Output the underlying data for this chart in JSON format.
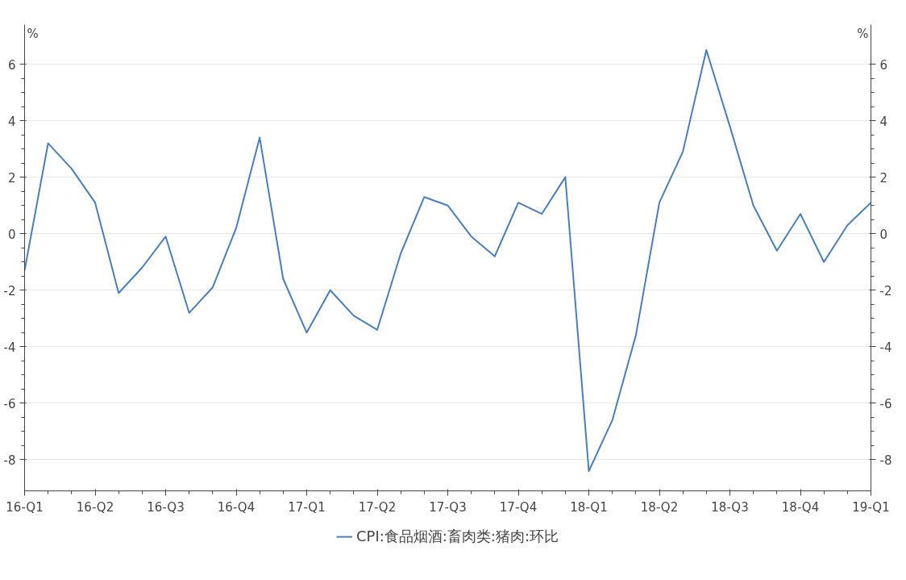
{
  "chart_data": {
    "type": "line",
    "ylabel": "%",
    "y2label": "%",
    "categories": [
      "16-Q1",
      null,
      null,
      "16-Q2",
      null,
      null,
      "16-Q3",
      null,
      null,
      "16-Q4",
      null,
      null,
      "17-Q1",
      null,
      null,
      "17-Q2",
      null,
      null,
      "17-Q3",
      null,
      null,
      "17-Q4",
      null,
      null,
      "18-Q1",
      null,
      null,
      "18-Q2",
      null,
      null,
      "18-Q3",
      null,
      null,
      "18-Q4",
      null,
      null,
      "19-Q1"
    ],
    "series": [
      {
        "name": "CPI:食品烟酒:畜肉类:猪肉:环比",
        "color": "#4a7ebb",
        "values": [
          -1.3,
          3.2,
          2.3,
          1.1,
          -2.1,
          -1.2,
          -0.1,
          -2.8,
          -1.9,
          0.2,
          3.4,
          -1.6,
          -3.5,
          -2.0,
          -2.9,
          -3.4,
          -0.7,
          1.3,
          1.0,
          -0.1,
          -0.8,
          1.1,
          0.7,
          2.0,
          -8.4,
          -6.6,
          -3.6,
          1.1,
          2.9,
          6.5,
          3.8,
          1.0,
          -0.6,
          0.7,
          -1.0,
          0.3,
          1.1
        ]
      }
    ],
    "ylim": [
      -9.1,
      7.4
    ],
    "yticks": [
      -8,
      -6,
      -4,
      -2,
      0,
      2,
      4,
      6
    ],
    "y2lim": [
      -9.1,
      7.4
    ],
    "y2ticks": [
      -8,
      -6,
      -4,
      -2,
      0,
      2,
      4,
      6
    ],
    "grid": "y",
    "legend": "bottom",
    "marker": "none",
    "line_style": "solid"
  }
}
